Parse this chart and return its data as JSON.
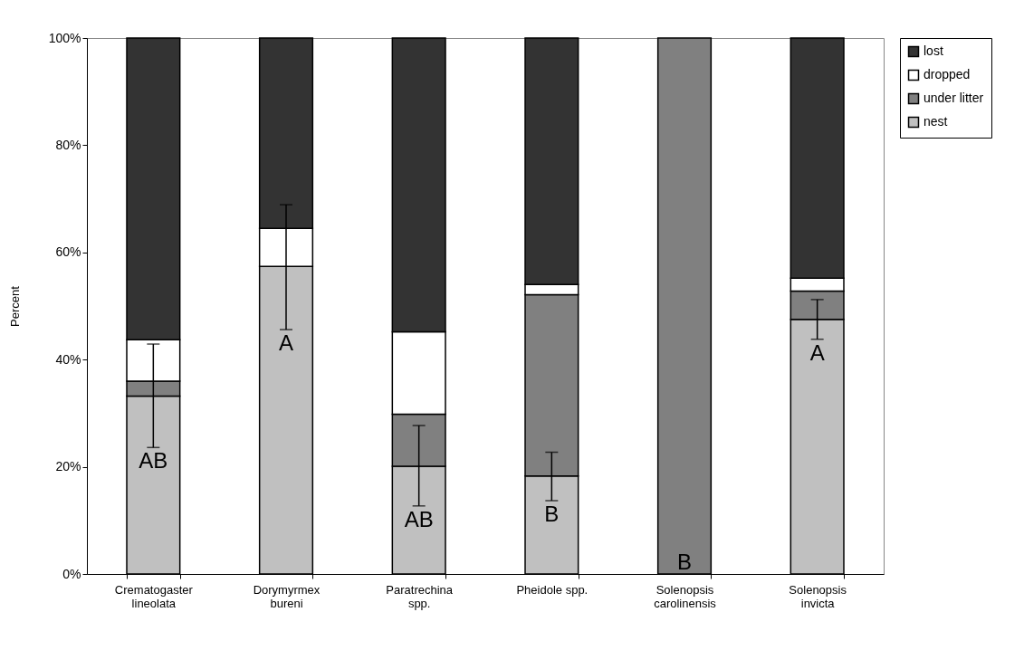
{
  "chart_data": {
    "type": "bar",
    "stacked": true,
    "ylabel": "Percent",
    "categories": [
      "Crematogaster lineolata",
      "Dorymyrmex bureni",
      "Paratrechina spp.",
      "Pheidole spp.",
      "Solenopsis carolinensis",
      "Solenopsis invicta"
    ],
    "series": [
      {
        "name": "nest",
        "color": "#c0c0c0",
        "values": [
          33.2,
          57.4,
          20.1,
          18.3,
          0,
          47.5
        ],
        "errors": [
          [
            23.6,
            42.9
          ],
          [
            45.6,
            68.9
          ],
          [
            12.7,
            27.7
          ],
          [
            13.7,
            22.7
          ],
          null,
          [
            43.8,
            51.2
          ]
        ]
      },
      {
        "name": "under litter",
        "color": "#808080",
        "values": [
          2.8,
          0,
          9.7,
          33.8,
          100,
          5.3
        ]
      },
      {
        "name": "dropped",
        "color": "#ffffff",
        "values": [
          7.7,
          7.1,
          15.4,
          1.9,
          0,
          2.4
        ]
      },
      {
        "name": "lost",
        "color": "#333333",
        "values": [
          56.3,
          35.5,
          54.8,
          46.0,
          0,
          44.8
        ]
      }
    ],
    "ylim": [
      0,
      100
    ],
    "yticks": [
      {
        "value": 0,
        "label": "0%"
      },
      {
        "value": 20,
        "label": "20%"
      },
      {
        "value": 40,
        "label": "40%"
      },
      {
        "value": 60,
        "label": "60%"
      },
      {
        "value": 80,
        "label": "80%"
      },
      {
        "value": 100,
        "label": "100%"
      }
    ],
    "annotations": [
      "AB",
      "A",
      "AB",
      "B",
      "B",
      "A"
    ],
    "grid": false,
    "legend": "right"
  }
}
